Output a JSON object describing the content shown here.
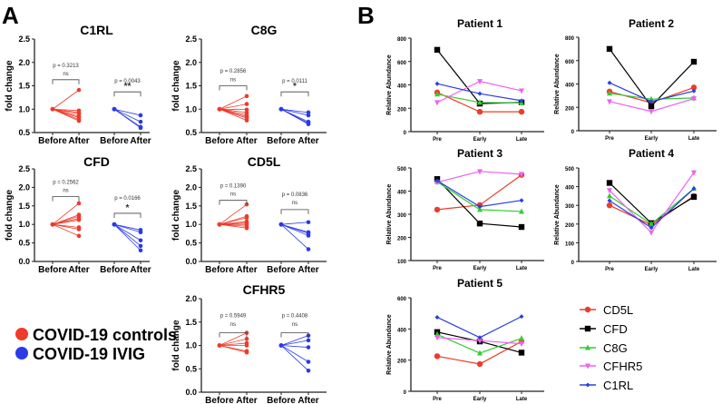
{
  "panel_labels": {
    "a": "A",
    "b": "B"
  },
  "colors": {
    "controls": "#f03a2a",
    "ivig": "#2a3ae8",
    "CD5L": "#f03a2a",
    "CFD": "#000000",
    "C8G": "#33cc33",
    "CFHR5": "#f060f0",
    "C1RL": "#2a40e0"
  },
  "group_legend": [
    {
      "label": "COVID-19 controls",
      "color": "#f03a2a"
    },
    {
      "label": "COVID-19 IVIG",
      "color": "#2a3ae8"
    }
  ],
  "series_legend": [
    {
      "label": "CD5L",
      "marker": "circle"
    },
    {
      "label": "CFD",
      "marker": "square"
    },
    {
      "label": "C8G",
      "marker": "triangle-up"
    },
    {
      "label": "CFHR5",
      "marker": "triangle-down"
    },
    {
      "label": "C1RL",
      "marker": "diamond"
    }
  ],
  "chart_data": [
    {
      "type": "line",
      "panel": "A",
      "title": "C1RL",
      "ylabel": "fold change",
      "ylim": [
        0.5,
        2.5
      ],
      "yticks": [
        "0.5",
        "1.0",
        "1.5",
        "2.0",
        "2.5"
      ],
      "categories": [
        "Before",
        "After",
        "Before",
        "After"
      ],
      "groups": [
        {
          "name": "COVID-19 controls",
          "before": 1.0,
          "after": [
            1.41,
            0.97,
            0.93,
            0.9,
            0.85,
            0.82,
            0.78,
            0.75
          ],
          "p": "p = 0.3213",
          "sig": "ns"
        },
        {
          "name": "COVID-19 IVIG",
          "before": 1.0,
          "after": [
            0.87,
            0.73,
            0.62,
            0.6
          ],
          "p": "p = 0.0043",
          "sig": "**"
        }
      ]
    },
    {
      "type": "line",
      "panel": "A",
      "title": "C8G",
      "ylabel": "fold change",
      "ylim": [
        0.5,
        2.5
      ],
      "yticks": [
        "0.5",
        "1.0",
        "1.5",
        "2.0",
        "2.5"
      ],
      "categories": [
        "Before",
        "After",
        "Before",
        "After"
      ],
      "groups": [
        {
          "name": "COVID-19 controls",
          "before": 1.0,
          "after": [
            1.28,
            1.11,
            0.99,
            0.93,
            0.88,
            0.84,
            0.81,
            0.76
          ],
          "p": "p = 0.2856",
          "sig": "ns"
        },
        {
          "name": "COVID-19 IVIG",
          "before": 1.0,
          "after": [
            0.93,
            0.87,
            0.73,
            0.7,
            0.68
          ],
          "p": "p = 0.0111",
          "sig": "*"
        }
      ]
    },
    {
      "type": "line",
      "panel": "A",
      "title": "CFD",
      "ylabel": "fold change",
      "ylim": [
        0.0,
        2.5
      ],
      "yticks": [
        "0.0",
        "0.5",
        "1.0",
        "1.5",
        "2.0",
        "2.5"
      ],
      "categories": [
        "Before",
        "After",
        "Before",
        "After"
      ],
      "groups": [
        {
          "name": "COVID-19 controls",
          "before": 1.0,
          "after": [
            1.57,
            1.26,
            1.22,
            1.16,
            1.12,
            0.92,
            0.87,
            0.69
          ],
          "p": "p = 0.2562",
          "sig": "ns"
        },
        {
          "name": "COVID-19 IVIG",
          "before": 1.0,
          "after": [
            0.85,
            0.79,
            0.57,
            0.42,
            0.3
          ],
          "p": "p = 0.0166",
          "sig": "*"
        }
      ]
    },
    {
      "type": "line",
      "panel": "A",
      "title": "CD5L",
      "ylabel": "fold change",
      "ylim": [
        0.0,
        2.5
      ],
      "yticks": [
        "0.0",
        "0.5",
        "1.0",
        "1.5",
        "2.0",
        "2.5"
      ],
      "categories": [
        "Before",
        "After",
        "Before",
        "After"
      ],
      "groups": [
        {
          "name": "COVID-19 controls",
          "before": 1.0,
          "after": [
            1.54,
            1.22,
            1.18,
            1.08,
            1.04,
            1.0,
            0.95,
            0.9
          ],
          "p": "p = 0.1390",
          "sig": "ns"
        },
        {
          "name": "COVID-19 IVIG",
          "before": 1.0,
          "after": [
            1.06,
            0.79,
            0.76,
            0.7,
            0.33
          ],
          "p": "p = 0.0836",
          "sig": "ns"
        }
      ]
    },
    {
      "type": "line",
      "panel": "A",
      "title": "CFHR5",
      "ylabel": "fold change",
      "ylim": [
        0.0,
        2.0
      ],
      "yticks": [
        "0.0",
        "0.5",
        "1.0",
        "1.5",
        "2.0"
      ],
      "categories": [
        "Before",
        "After",
        "Before",
        "After"
      ],
      "groups": [
        {
          "name": "COVID-19 controls",
          "before": 1.0,
          "after": [
            1.27,
            1.14,
            1.05,
            1.0,
            0.88,
            0.85
          ],
          "p": "p = 0.5949",
          "sig": "ns"
        },
        {
          "name": "COVID-19 IVIG",
          "before": 1.0,
          "after": [
            1.21,
            1.11,
            0.96,
            0.65,
            0.46
          ],
          "p": "p = 0.4408",
          "sig": "ns"
        }
      ]
    },
    {
      "type": "line",
      "panel": "B",
      "title": "Patient 1",
      "ylabel": "Relative Abundance",
      "ylim": [
        0,
        800
      ],
      "yticks": [
        "0",
        "200",
        "400",
        "600",
        "800"
      ],
      "categories": [
        "Pre",
        "Early",
        "Late"
      ],
      "series": [
        {
          "name": "CD5L",
          "values": [
            335,
            170,
            170
          ]
        },
        {
          "name": "CFD",
          "values": [
            700,
            240,
            250
          ]
        },
        {
          "name": "C8G",
          "values": [
            320,
            250,
            245
          ]
        },
        {
          "name": "CFHR5",
          "values": [
            250,
            430,
            350
          ]
        },
        {
          "name": "C1RL",
          "values": [
            410,
            325,
            265
          ]
        }
      ]
    },
    {
      "type": "line",
      "panel": "B",
      "title": "Patient 2",
      "ylabel": "Relative Abundance",
      "ylim": [
        0,
        800
      ],
      "yticks": [
        "0",
        "200",
        "400",
        "600",
        "800"
      ],
      "categories": [
        "Pre",
        "Early",
        "Late"
      ],
      "series": [
        {
          "name": "CD5L",
          "values": [
            335,
            240,
            370
          ]
        },
        {
          "name": "CFD",
          "values": [
            700,
            210,
            590
          ]
        },
        {
          "name": "C8G",
          "values": [
            320,
            270,
            280
          ]
        },
        {
          "name": "CFHR5",
          "values": [
            250,
            165,
            275
          ]
        },
        {
          "name": "C1RL",
          "values": [
            410,
            250,
            340
          ]
        }
      ]
    },
    {
      "type": "line",
      "panel": "B",
      "title": "Patient 3",
      "ylabel": "Relative Abundance",
      "ylim": [
        100,
        500
      ],
      "yticks": [
        "100",
        "200",
        "300",
        "400",
        "500"
      ],
      "categories": [
        "Pre",
        "Early",
        "Late"
      ],
      "series": [
        {
          "name": "CD5L",
          "values": [
            320,
            340,
            470
          ]
        },
        {
          "name": "CFD",
          "values": [
            452,
            260,
            245
          ]
        },
        {
          "name": "C8G",
          "values": [
            440,
            320,
            312
          ]
        },
        {
          "name": "CFHR5",
          "values": [
            438,
            485,
            473
          ]
        },
        {
          "name": "C1RL",
          "values": [
            445,
            333,
            360
          ]
        }
      ]
    },
    {
      "type": "line",
      "panel": "B",
      "title": "Patient 4",
      "ylabel": "Relative Abundance",
      "ylim": [
        0,
        500
      ],
      "yticks": [
        "0",
        "100",
        "200",
        "300",
        "400",
        "500"
      ],
      "categories": [
        "Pre",
        "Early",
        "Late"
      ],
      "series": [
        {
          "name": "CD5L",
          "values": [
            300,
            195,
            350
          ]
        },
        {
          "name": "CFD",
          "values": [
            420,
            205,
            345
          ]
        },
        {
          "name": "C8G",
          "values": [
            350,
            200,
            390
          ]
        },
        {
          "name": "CFHR5",
          "values": [
            380,
            155,
            475
          ]
        },
        {
          "name": "C1RL",
          "values": [
            325,
            180,
            390
          ]
        }
      ]
    },
    {
      "type": "line",
      "panel": "B",
      "title": "Patient 5",
      "ylabel": "Relative Abundance",
      "ylim": [
        0,
        600
      ],
      "yticks": [
        "0",
        "200",
        "400",
        "600"
      ],
      "categories": [
        "Pre",
        "Early",
        "Late"
      ],
      "series": [
        {
          "name": "CD5L",
          "values": [
            225,
            175,
            320
          ]
        },
        {
          "name": "CFD",
          "values": [
            380,
            320,
            248
          ]
        },
        {
          "name": "C8G",
          "values": [
            365,
            245,
            340
          ]
        },
        {
          "name": "CFHR5",
          "values": [
            345,
            325,
            305
          ]
        },
        {
          "name": "C1RL",
          "values": [
            475,
            345,
            480
          ]
        }
      ]
    }
  ]
}
